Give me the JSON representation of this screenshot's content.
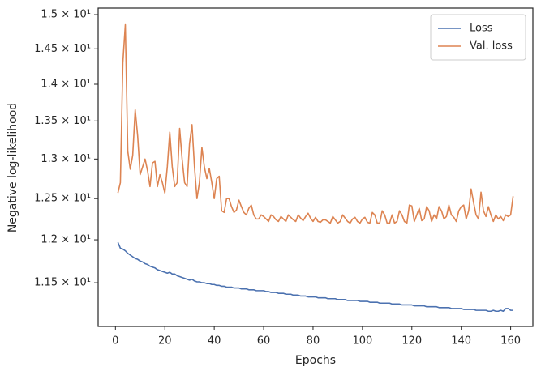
{
  "chart_data": {
    "type": "line",
    "xlabel": "Epochs",
    "ylabel": "Negative log-likelihood",
    "x": [
      1,
      2,
      3,
      4,
      5,
      6,
      7,
      8,
      9,
      10,
      11,
      12,
      13,
      14,
      15,
      16,
      17,
      18,
      19,
      20,
      21,
      22,
      23,
      24,
      25,
      26,
      27,
      28,
      29,
      30,
      31,
      32,
      33,
      34,
      35,
      36,
      37,
      38,
      39,
      40,
      41,
      42,
      43,
      44,
      45,
      46,
      47,
      48,
      49,
      50,
      51,
      52,
      53,
      54,
      55,
      56,
      57,
      58,
      59,
      60,
      61,
      62,
      63,
      64,
      65,
      66,
      67,
      68,
      69,
      70,
      71,
      72,
      73,
      74,
      75,
      76,
      77,
      78,
      79,
      80,
      81,
      82,
      83,
      84,
      85,
      86,
      87,
      88,
      89,
      90,
      91,
      92,
      93,
      94,
      95,
      96,
      97,
      98,
      99,
      100,
      101,
      102,
      103,
      104,
      105,
      106,
      107,
      108,
      109,
      110,
      111,
      112,
      113,
      114,
      115,
      116,
      117,
      118,
      119,
      120,
      121,
      122,
      123,
      124,
      125,
      126,
      127,
      128,
      129,
      130,
      131,
      132,
      133,
      134,
      135,
      136,
      137,
      138,
      139,
      140,
      141,
      142,
      143,
      144,
      145,
      146,
      147,
      148,
      149,
      150,
      151,
      152,
      153,
      154,
      155,
      156,
      157,
      158,
      159,
      160,
      161
    ],
    "series": [
      {
        "name": "Loss",
        "color": "#4c72b0",
        "values": [
          11.97,
          11.9,
          11.89,
          11.87,
          11.84,
          11.82,
          11.8,
          11.78,
          11.77,
          11.75,
          11.74,
          11.72,
          11.71,
          11.69,
          11.68,
          11.67,
          11.65,
          11.64,
          11.63,
          11.62,
          11.61,
          11.62,
          11.6,
          11.6,
          11.58,
          11.57,
          11.56,
          11.55,
          11.54,
          11.53,
          11.54,
          11.52,
          11.51,
          11.51,
          11.5,
          11.5,
          11.49,
          11.49,
          11.48,
          11.48,
          11.47,
          11.47,
          11.46,
          11.46,
          11.45,
          11.45,
          11.45,
          11.44,
          11.44,
          11.44,
          11.43,
          11.43,
          11.43,
          11.42,
          11.42,
          11.42,
          11.41,
          11.41,
          11.41,
          11.41,
          11.4,
          11.4,
          11.39,
          11.39,
          11.39,
          11.38,
          11.38,
          11.38,
          11.37,
          11.37,
          11.37,
          11.36,
          11.36,
          11.36,
          11.35,
          11.35,
          11.35,
          11.34,
          11.34,
          11.34,
          11.34,
          11.33,
          11.33,
          11.33,
          11.33,
          11.32,
          11.32,
          11.32,
          11.32,
          11.31,
          11.31,
          11.31,
          11.31,
          11.3,
          11.3,
          11.3,
          11.3,
          11.3,
          11.29,
          11.29,
          11.29,
          11.29,
          11.28,
          11.28,
          11.28,
          11.28,
          11.27,
          11.27,
          11.27,
          11.27,
          11.27,
          11.26,
          11.26,
          11.26,
          11.26,
          11.25,
          11.25,
          11.25,
          11.25,
          11.25,
          11.24,
          11.24,
          11.24,
          11.24,
          11.24,
          11.23,
          11.23,
          11.23,
          11.23,
          11.23,
          11.22,
          11.22,
          11.22,
          11.22,
          11.22,
          11.21,
          11.21,
          11.21,
          11.21,
          11.21,
          11.2,
          11.2,
          11.2,
          11.2,
          11.2,
          11.19,
          11.19,
          11.19,
          11.19,
          11.19,
          11.18,
          11.18,
          11.19,
          11.18,
          11.18,
          11.19,
          11.18,
          11.21,
          11.21,
          11.19,
          11.19
        ]
      },
      {
        "name": "Val. loss",
        "color": "#dd8452",
        "values": [
          12.57,
          12.7,
          14.3,
          14.85,
          13.1,
          12.87,
          13.05,
          13.65,
          13.3,
          12.8,
          12.9,
          13.0,
          12.85,
          12.65,
          12.95,
          12.97,
          12.65,
          12.8,
          12.7,
          12.57,
          12.9,
          13.35,
          12.9,
          12.65,
          12.7,
          13.4,
          13.0,
          12.7,
          12.65,
          13.2,
          13.45,
          12.9,
          12.5,
          12.7,
          13.15,
          12.9,
          12.75,
          12.88,
          12.7,
          12.5,
          12.75,
          12.78,
          12.35,
          12.33,
          12.5,
          12.5,
          12.4,
          12.33,
          12.36,
          12.48,
          12.4,
          12.33,
          12.3,
          12.38,
          12.42,
          12.3,
          12.25,
          12.25,
          12.3,
          12.28,
          12.25,
          12.22,
          12.3,
          12.28,
          12.24,
          12.22,
          12.28,
          12.25,
          12.22,
          12.3,
          12.27,
          12.24,
          12.22,
          12.3,
          12.26,
          12.23,
          12.28,
          12.32,
          12.26,
          12.22,
          12.27,
          12.22,
          12.21,
          12.24,
          12.24,
          12.22,
          12.2,
          12.28,
          12.24,
          12.2,
          12.22,
          12.3,
          12.26,
          12.22,
          12.2,
          12.25,
          12.27,
          12.22,
          12.2,
          12.25,
          12.27,
          12.21,
          12.2,
          12.33,
          12.3,
          12.2,
          12.2,
          12.35,
          12.3,
          12.2,
          12.2,
          12.3,
          12.2,
          12.22,
          12.35,
          12.3,
          12.22,
          12.2,
          12.42,
          12.41,
          12.22,
          12.3,
          12.38,
          12.23,
          12.25,
          12.4,
          12.35,
          12.22,
          12.3,
          12.25,
          12.4,
          12.35,
          12.25,
          12.28,
          12.42,
          12.3,
          12.27,
          12.22,
          12.35,
          12.4,
          12.42,
          12.25,
          12.35,
          12.62,
          12.45,
          12.3,
          12.25,
          12.58,
          12.35,
          12.28,
          12.4,
          12.3,
          12.22,
          12.3,
          12.25,
          12.28,
          12.23,
          12.3,
          12.28,
          12.3,
          12.53
        ]
      }
    ],
    "xlim": [
      -7,
      169
    ],
    "xticks": [
      0,
      20,
      40,
      60,
      80,
      100,
      120,
      140,
      160
    ],
    "yscale": "log",
    "ylim": [
      11.013,
      15.097
    ],
    "yticks": [
      {
        "value": 11.5,
        "label": "1.15 × 10¹"
      },
      {
        "value": 12,
        "label": "1.2 × 10¹"
      },
      {
        "value": 12.5,
        "label": "1.25 × 10¹"
      },
      {
        "value": 13,
        "label": "1.3 × 10¹"
      },
      {
        "value": 13.5,
        "label": "1.35 × 10¹"
      },
      {
        "value": 14,
        "label": "1.4 × 10¹"
      },
      {
        "value": 14.5,
        "label": "1.45 × 10¹"
      },
      {
        "value": 15,
        "label": "1.5 × 10¹"
      }
    ],
    "grid": false,
    "legend": "upper right"
  }
}
